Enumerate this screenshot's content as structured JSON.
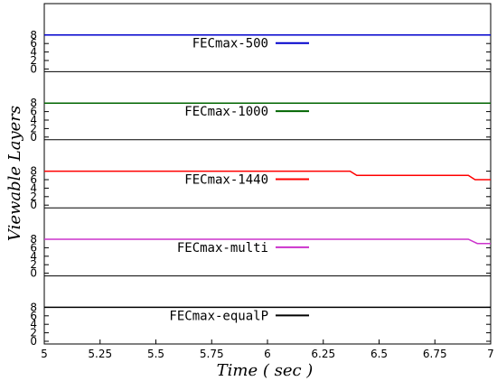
{
  "chart_data": {
    "type": "line",
    "xlabel": "Time ( sec )",
    "ylabel": "Viewable Layers",
    "xlim": [
      5,
      7
    ],
    "x_ticks": [
      "5",
      "5.25",
      "5.5",
      "5.75",
      "6",
      "6.25",
      "6.5",
      "6.75",
      "7"
    ],
    "ylim": [
      0,
      8.5
    ],
    "y_ticks": [
      "0",
      "2",
      "4",
      "6",
      "8"
    ],
    "grid": false,
    "legend_placement": "center",
    "panels": [
      {
        "name": "FECmax-500",
        "color": "#0000cc",
        "x": [
          5,
          7
        ],
        "y": [
          8,
          8
        ]
      },
      {
        "name": "FECmax-1000",
        "color": "#006400",
        "x": [
          5,
          7
        ],
        "y": [
          8,
          8
        ]
      },
      {
        "name": "FECmax-1440",
        "color": "#ff0000",
        "x": [
          5,
          6.37,
          6.4,
          6.9,
          6.93,
          7
        ],
        "y": [
          8,
          8,
          7,
          7,
          6,
          6
        ]
      },
      {
        "name": "FECmax-multi",
        "color": "#cc33cc",
        "x": [
          5,
          6.9,
          6.94,
          7
        ],
        "y": [
          8,
          8,
          7,
          7
        ]
      },
      {
        "name": "FECmax-equalP",
        "color": "#000000",
        "x": [
          5,
          7
        ],
        "y": [
          8,
          8
        ]
      }
    ]
  }
}
